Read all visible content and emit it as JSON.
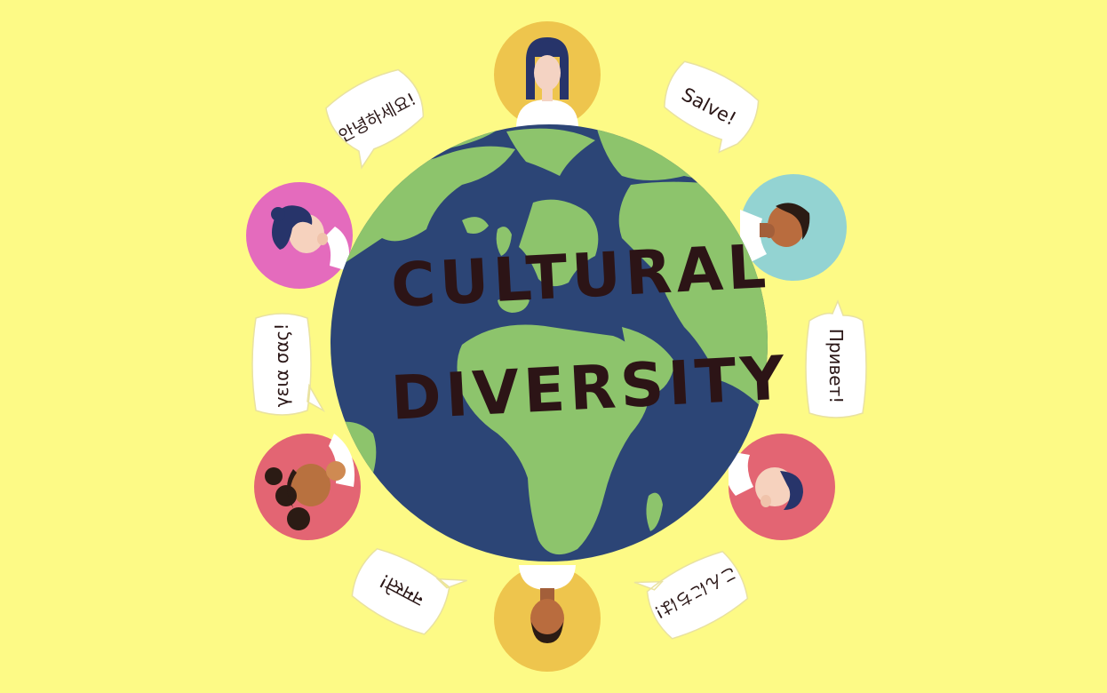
{
  "title": {
    "line1": "CULTURAL",
    "line2": "DIVERSITY"
  },
  "greetings": {
    "korean": "안녕하세요!",
    "latin": "Salve!",
    "russian": "Привет!",
    "japanese": "こんにちは!",
    "hindi": "नमस्ते!",
    "greek": "γεια σας!"
  },
  "colors": {
    "background": "#fdfa86",
    "ocean": "#2c4576",
    "land": "#8dc46c",
    "title": "#2c1416",
    "avatar_gold": "#eec54d",
    "avatar_teal": "#93d3d2",
    "avatar_pink": "#e46bbd",
    "avatar_red": "#e36573"
  },
  "icons": [
    "globe-icon",
    "person-avatar-icon",
    "speech-bubble-icon"
  ]
}
